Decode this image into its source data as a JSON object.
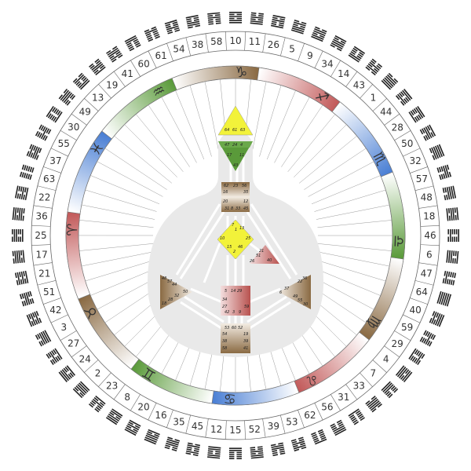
{
  "colors": {
    "earth": "#8a6a43",
    "fire": "#c25a5a",
    "water": "#4a7fd4",
    "air": "#5a9a3a",
    "ring_line": "#555555",
    "body_bg": "#e9e9e9",
    "center_yellow": "#f2f23a",
    "center_green": "#5a9a3a",
    "center_brown": "#8a6a43",
    "center_red": "#b8524f"
  },
  "signs": [
    {
      "name": "capricorn",
      "glyph": "♑",
      "element": "earth"
    },
    {
      "name": "sagittarius",
      "glyph": "♐",
      "element": "fire"
    },
    {
      "name": "scorpio",
      "glyph": "♏",
      "element": "water"
    },
    {
      "name": "libra",
      "glyph": "♎",
      "element": "air"
    },
    {
      "name": "virgo",
      "glyph": "♍",
      "element": "earth"
    },
    {
      "name": "leo",
      "glyph": "♌",
      "element": "fire"
    },
    {
      "name": "cancer",
      "glyph": "♋",
      "element": "water"
    },
    {
      "name": "gemini",
      "glyph": "♊",
      "element": "air"
    },
    {
      "name": "taurus",
      "glyph": "♉",
      "element": "earth"
    },
    {
      "name": "aries",
      "glyph": "♈",
      "element": "fire"
    },
    {
      "name": "pisces",
      "glyph": "♓",
      "element": "water"
    },
    {
      "name": "aquarius",
      "glyph": "♒",
      "element": "air"
    }
  ],
  "gates": [
    "10",
    "11",
    "26",
    "5",
    "9",
    "34",
    "14",
    "43",
    "1",
    "44",
    "28",
    "50",
    "32",
    "57",
    "48",
    "18",
    "46",
    "6",
    "47",
    "64",
    "40",
    "59",
    "29",
    "4",
    "7",
    "33",
    "31",
    "56",
    "62",
    "53",
    "39",
    "52",
    "15",
    "12",
    "45",
    "35",
    "16",
    "20",
    "8",
    "23",
    "2",
    "24",
    "27",
    "3",
    "42",
    "51",
    "21",
    "17",
    "25",
    "36",
    "22",
    "63",
    "37",
    "55",
    "30",
    "49",
    "13",
    "19",
    "41",
    "60",
    "61",
    "54",
    "38",
    "58"
  ],
  "centers": {
    "head": [
      "64",
      "61",
      "63"
    ],
    "ajna": [
      "47",
      "24",
      "4",
      "17",
      "11",
      "43"
    ],
    "throat": [
      "62",
      "23",
      "56",
      "16",
      "35",
      "20",
      "12",
      "31",
      "8",
      "33",
      "45"
    ],
    "g_center": [
      "7",
      "1",
      "13",
      "10",
      "25",
      "15",
      "2",
      "46"
    ],
    "ego": [
      "21",
      "51",
      "26",
      "40"
    ],
    "spleen": [
      "48",
      "57",
      "44",
      "50",
      "32",
      "28",
      "18"
    ],
    "solar_plexus": [
      "36",
      "22",
      "37",
      "6",
      "49",
      "55",
      "30"
    ],
    "sacral": [
      "5",
      "14",
      "29",
      "34",
      "27",
      "42",
      "3",
      "9",
      "59"
    ],
    "root": [
      "53",
      "60",
      "52",
      "54",
      "19",
      "38",
      "39",
      "58",
      "41"
    ]
  }
}
